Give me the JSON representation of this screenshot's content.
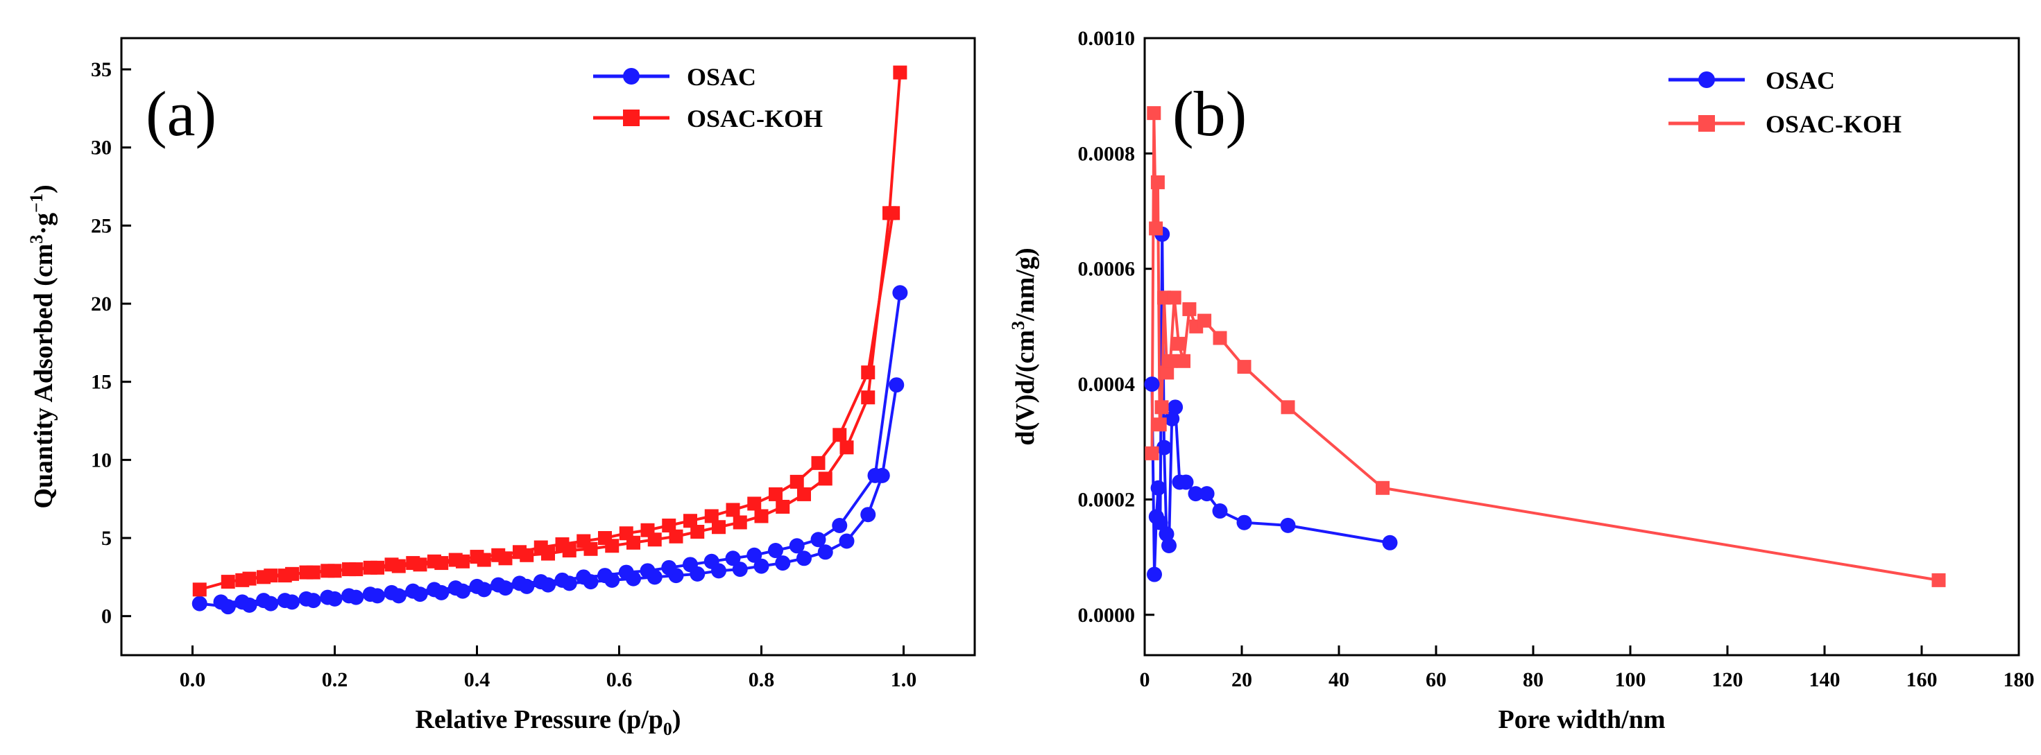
{
  "chart_data": [
    {
      "type": "line",
      "panel_label": "(a)",
      "xlabel": "Relative Pressure (p/p",
      "xlabel_sub": "0",
      "xlabel_tail": ")",
      "ylabel": "Quantity Adsorbed (cm",
      "ylabel_sup1": "3",
      "ylabel_mid": "·g",
      "ylabel_sup2": "−1",
      "ylabel_tail": ")",
      "xlim": [
        -0.1,
        1.1
      ],
      "ylim": [
        -2.5,
        37
      ],
      "xticks": [
        0.0,
        0.2,
        0.4,
        0.6,
        0.8,
        1.0
      ],
      "xtick_labels": [
        "0.0",
        "0.2",
        "0.4",
        "0.6",
        "0.8",
        "1.0"
      ],
      "yticks": [
        0,
        5,
        10,
        15,
        20,
        25,
        30,
        35
      ],
      "ytick_labels": [
        "0",
        "5",
        "10",
        "15",
        "20",
        "25",
        "30",
        "35"
      ],
      "legend_position": "top-right",
      "series": [
        {
          "name": "OSAC",
          "color": "#1a1aff",
          "marker": "circle",
          "adsorption": {
            "x": [
              0.01,
              0.05,
              0.08,
              0.11,
              0.14,
              0.17,
              0.2,
              0.23,
              0.26,
              0.29,
              0.32,
              0.35,
              0.38,
              0.41,
              0.44,
              0.47,
              0.5,
              0.53,
              0.56,
              0.59,
              0.62,
              0.65,
              0.68,
              0.71,
              0.74,
              0.77,
              0.8,
              0.83,
              0.86,
              0.89,
              0.92,
              0.95,
              0.97,
              0.99
            ],
            "y": [
              0.8,
              0.6,
              0.7,
              0.8,
              0.9,
              1.0,
              1.1,
              1.2,
              1.3,
              1.3,
              1.4,
              1.5,
              1.6,
              1.7,
              1.8,
              1.9,
              2.0,
              2.1,
              2.2,
              2.3,
              2.4,
              2.5,
              2.6,
              2.7,
              2.9,
              3.0,
              3.2,
              3.4,
              3.7,
              4.1,
              4.8,
              6.5,
              9.0,
              14.8
            ]
          },
          "desorption": {
            "x": [
              0.995,
              0.96,
              0.91,
              0.88,
              0.85,
              0.82,
              0.79,
              0.76,
              0.73,
              0.7,
              0.67,
              0.64,
              0.61,
              0.58,
              0.55,
              0.52,
              0.49,
              0.46,
              0.43,
              0.4,
              0.37,
              0.34,
              0.31,
              0.28,
              0.25,
              0.22,
              0.19,
              0.16,
              0.13,
              0.1,
              0.07,
              0.04
            ],
            "y": [
              20.7,
              9.0,
              5.8,
              4.9,
              4.5,
              4.2,
              3.9,
              3.7,
              3.5,
              3.3,
              3.1,
              2.9,
              2.8,
              2.6,
              2.5,
              2.3,
              2.2,
              2.1,
              2.0,
              1.9,
              1.8,
              1.7,
              1.6,
              1.5,
              1.4,
              1.3,
              1.2,
              1.1,
              1.0,
              1.0,
              0.9,
              0.9
            ]
          }
        },
        {
          "name": "OSAC-KOH",
          "color": "#ff1a1a",
          "marker": "square",
          "adsorption": {
            "x": [
              0.01,
              0.05,
              0.08,
              0.11,
              0.14,
              0.17,
              0.2,
              0.23,
              0.26,
              0.29,
              0.32,
              0.35,
              0.38,
              0.41,
              0.44,
              0.47,
              0.5,
              0.53,
              0.56,
              0.59,
              0.62,
              0.65,
              0.68,
              0.71,
              0.74,
              0.77,
              0.8,
              0.83,
              0.86,
              0.89,
              0.92,
              0.95,
              0.98,
              0.995
            ],
            "y": [
              1.7,
              2.2,
              2.4,
              2.6,
              2.7,
              2.8,
              2.9,
              3.0,
              3.1,
              3.2,
              3.3,
              3.4,
              3.5,
              3.6,
              3.7,
              3.9,
              4.0,
              4.2,
              4.3,
              4.5,
              4.7,
              4.9,
              5.1,
              5.4,
              5.7,
              6.0,
              6.4,
              7.0,
              7.8,
              8.8,
              10.8,
              14.0,
              25.8,
              34.8
            ]
          },
          "desorption": {
            "x": [
              0.985,
              0.95,
              0.91,
              0.88,
              0.85,
              0.82,
              0.79,
              0.76,
              0.73,
              0.7,
              0.67,
              0.64,
              0.61,
              0.58,
              0.55,
              0.52,
              0.49,
              0.46,
              0.43,
              0.4,
              0.37,
              0.34,
              0.31,
              0.28,
              0.25,
              0.22,
              0.19,
              0.16,
              0.13,
              0.1,
              0.07
            ],
            "y": [
              25.8,
              15.6,
              11.6,
              9.8,
              8.6,
              7.8,
              7.2,
              6.8,
              6.4,
              6.1,
              5.8,
              5.5,
              5.3,
              5.0,
              4.8,
              4.6,
              4.4,
              4.1,
              3.9,
              3.8,
              3.6,
              3.5,
              3.4,
              3.3,
              3.1,
              3.0,
              2.9,
              2.8,
              2.6,
              2.5,
              2.3
            ]
          }
        }
      ]
    },
    {
      "type": "line",
      "panel_label": "(b)",
      "xlabel": "Pore width/nm",
      "ylabel": "d(V)d/(cm",
      "ylabel_sup1": "3",
      "ylabel_tail": "/nm/g)",
      "xlim": [
        0,
        180
      ],
      "ylim": [
        -7e-05,
        0.001
      ],
      "xticks": [
        0,
        20,
        40,
        60,
        80,
        100,
        120,
        140,
        160,
        180
      ],
      "xtick_labels": [
        "0",
        "20",
        "40",
        "60",
        "80",
        "100",
        "120",
        "140",
        "160",
        "180"
      ],
      "yticks": [
        0,
        0.0002,
        0.0004,
        0.0006,
        0.0008,
        0.001
      ],
      "ytick_labels": [
        "0.0000",
        "0.0002",
        "0.0004",
        "0.0006",
        "0.0008",
        "0.0010"
      ],
      "legend_position": "top-right",
      "series": [
        {
          "name": "OSAC",
          "color": "#1a1aff",
          "marker": "circle",
          "x": [
            1.5,
            2.0,
            2.4,
            2.8,
            3.2,
            3.6,
            4.0,
            4.5,
            5.0,
            5.6,
            6.3,
            7.2,
            8.5,
            10.5,
            12.8,
            15.5,
            20.5,
            29.5,
            50.5
          ],
          "y": [
            0.0004,
            7e-05,
            0.00017,
            0.00022,
            0.00016,
            0.00066,
            0.00029,
            0.00014,
            0.00012,
            0.00034,
            0.00036,
            0.00023,
            0.00023,
            0.00021,
            0.00021,
            0.00018,
            0.00016,
            0.000155,
            0.000125
          ]
        },
        {
          "name": "OSAC-KOH",
          "color": "#ff4d4d",
          "marker": "square",
          "x": [
            1.5,
            1.9,
            2.3,
            2.7,
            3.1,
            3.5,
            4.0,
            4.6,
            5.3,
            6.1,
            7.0,
            8.0,
            9.2,
            10.6,
            12.3,
            15.5,
            20.5,
            29.5,
            49.0,
            163.5
          ],
          "y": [
            0.00028,
            0.00087,
            0.00067,
            0.00075,
            0.00033,
            0.00036,
            0.00055,
            0.00042,
            0.00044,
            0.00055,
            0.00047,
            0.00044,
            0.00053,
            0.0005,
            0.00051,
            0.00048,
            0.00043,
            0.00036,
            0.00022,
            6e-05
          ]
        }
      ]
    }
  ]
}
